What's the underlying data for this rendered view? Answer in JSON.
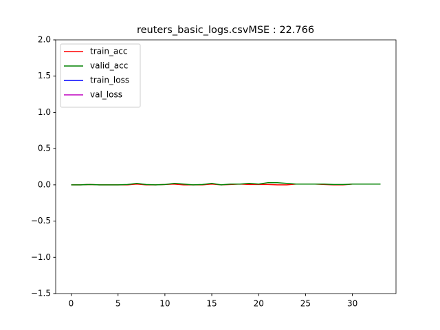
{
  "chart_data": {
    "type": "line",
    "title": "reuters_basic_logs.csvMSE : 22.766",
    "x": [
      0,
      1,
      2,
      3,
      4,
      5,
      6,
      7,
      8,
      9,
      10,
      11,
      12,
      13,
      14,
      15,
      16,
      17,
      18,
      19,
      20,
      21,
      22,
      23,
      24,
      25,
      26,
      27,
      28,
      29,
      30,
      31,
      32,
      33
    ],
    "series": [
      {
        "name": "train_acc",
        "color": "#ff0000",
        "values": [
          0,
          0,
          0.005,
          0,
          0,
          0,
          0,
          0.01,
          0,
          0,
          0.005,
          0.01,
          0,
          0,
          0,
          0.01,
          0,
          0.005,
          0.01,
          0.005,
          0.005,
          0.005,
          0,
          0,
          0.01,
          0.01,
          0.01,
          0.005,
          0,
          0,
          0.01,
          0.01,
          0.01,
          0.01
        ]
      },
      {
        "name": "valid_acc",
        "color": "#008000",
        "values": [
          0,
          0,
          0.005,
          0,
          0,
          0,
          0.005,
          0.02,
          0.005,
          0,
          0.005,
          0.02,
          0.01,
          0,
          0.005,
          0.02,
          0,
          0.01,
          0.01,
          0.02,
          0.01,
          0.03,
          0.03,
          0.02,
          0.01,
          0.01,
          0.01,
          0.01,
          0.005,
          0.005,
          0.01,
          0.01,
          0.01,
          0.01
        ]
      },
      {
        "name": "train_loss",
        "color": "#0000ff",
        "values": [
          null,
          null,
          null,
          null,
          null,
          null,
          null,
          null,
          null,
          null,
          null,
          null,
          null,
          null,
          null,
          null,
          null,
          null,
          null,
          null,
          null,
          null,
          null,
          null,
          null,
          null,
          null,
          null,
          null,
          null,
          null,
          null,
          null,
          null
        ]
      },
      {
        "name": "val_loss",
        "color": "#bf00bf",
        "values": [
          null,
          null,
          null,
          null,
          null,
          null,
          null,
          null,
          null,
          null,
          null,
          null,
          null,
          null,
          null,
          null,
          null,
          null,
          null,
          null,
          null,
          null,
          null,
          null,
          null,
          null,
          null,
          null,
          null,
          null,
          null,
          null,
          null,
          null
        ]
      }
    ],
    "xlim": [
      -1.65,
      34.65
    ],
    "xticks": [
      0,
      5,
      10,
      15,
      20,
      25,
      30
    ],
    "ylim": [
      -1.5,
      2.0
    ],
    "yticks": [
      {
        "value": -1.5,
        "label": "−1.5"
      },
      {
        "value": -1.0,
        "label": "−1.0"
      },
      {
        "value": -0.5,
        "label": "−0.5"
      },
      {
        "value": 0.0,
        "label": "0.0"
      },
      {
        "value": 0.5,
        "label": "0.5"
      },
      {
        "value": 1.0,
        "label": "1.0"
      },
      {
        "value": 1.5,
        "label": "1.5"
      },
      {
        "value": 2.0,
        "label": "2.0"
      }
    ],
    "legend": "upper left",
    "grid": false
  }
}
